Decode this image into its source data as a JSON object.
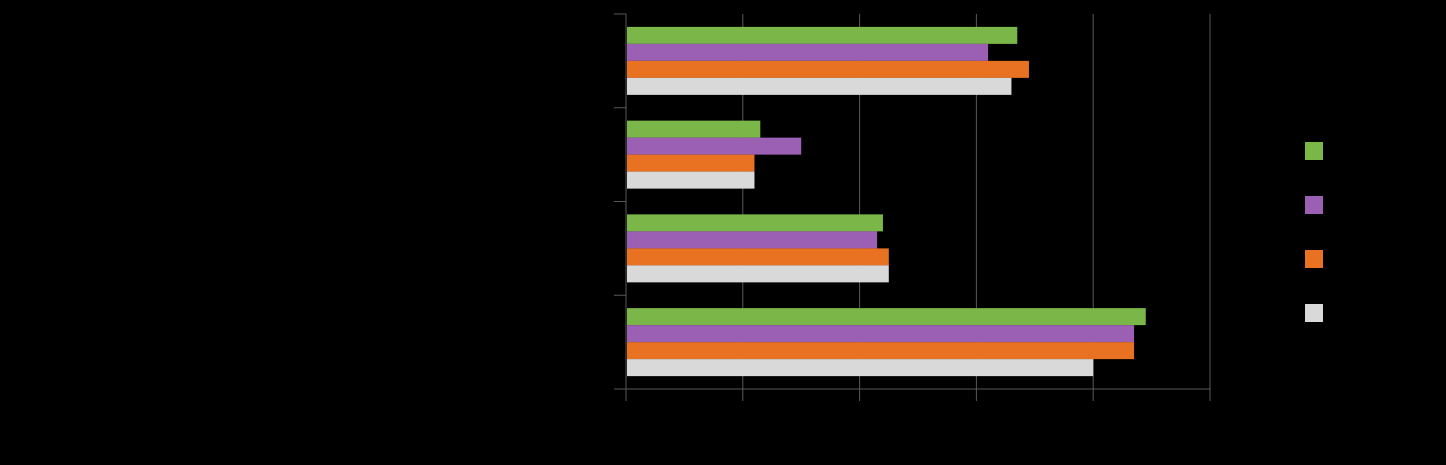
{
  "chart_data": {
    "type": "bar",
    "orientation": "horizontal",
    "categories": [
      "",
      "",
      "",
      ""
    ],
    "series": [
      {
        "color": "#7ab648",
        "values": [
          6.7,
          2.3,
          4.4,
          8.9
        ]
      },
      {
        "color": "#9b5fb4",
        "values": [
          6.2,
          3.0,
          4.3,
          8.7
        ]
      },
      {
        "color": "#e87222",
        "values": [
          6.9,
          2.2,
          4.5,
          8.7
        ]
      },
      {
        "color": "#d9d9d9",
        "values": [
          6.6,
          2.2,
          4.5,
          8.0
        ]
      }
    ],
    "xlim": [
      0,
      10
    ],
    "x_gridlines": [
      0,
      2,
      4,
      6,
      8,
      10
    ],
    "grid": true,
    "legend": "right",
    "background": "#000000",
    "axis_color": "#595959"
  }
}
